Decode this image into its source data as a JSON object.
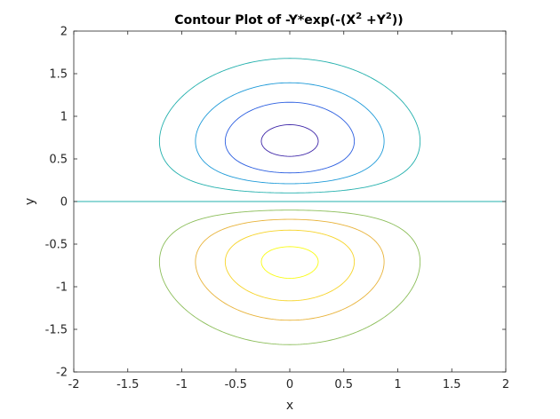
{
  "chart_data": {
    "type": "contour",
    "title": {
      "parts": [
        "Contour Plot of -Y*exp(-(X",
        "2",
        " +Y",
        "2",
        "))"
      ],
      "superscript": [
        false,
        true,
        false,
        true,
        false
      ]
    },
    "xlabel": "x",
    "ylabel": "y",
    "xlim": [
      -2,
      2
    ],
    "ylim": [
      -2,
      2
    ],
    "xticks": [
      -2,
      -1.5,
      -1,
      -0.5,
      0,
      0.5,
      1,
      1.5,
      2
    ],
    "yticks": [
      -2,
      -1.5,
      -1,
      -0.5,
      0,
      0.5,
      1,
      1.5,
      2
    ],
    "xtick_labels": [
      "-2",
      "-1.5",
      "-1",
      "-0.5",
      "0",
      "0.5",
      "1",
      "1.5",
      "2"
    ],
    "ytick_labels": [
      "-2",
      "-1.5",
      "-1",
      "-0.5",
      "0",
      "0.5",
      "1",
      "1.5",
      "2"
    ],
    "grid": false,
    "function": "-y*exp(-(x^2+y^2))",
    "levels": [
      {
        "value": -0.4,
        "color": "#3e26a8"
      },
      {
        "value": -0.3,
        "color": "#2c5fe0"
      },
      {
        "value": -0.2,
        "color": "#1e9ad8"
      },
      {
        "value": -0.1,
        "color": "#23b0ad"
      },
      {
        "value": 0.0,
        "color": "#23b0ad"
      },
      {
        "value": 0.1,
        "color": "#8cbe5a"
      },
      {
        "value": 0.2,
        "color": "#e8b33a"
      },
      {
        "value": 0.3,
        "color": "#f6d42a"
      },
      {
        "value": 0.4,
        "color": "#f9fb14"
      }
    ]
  }
}
